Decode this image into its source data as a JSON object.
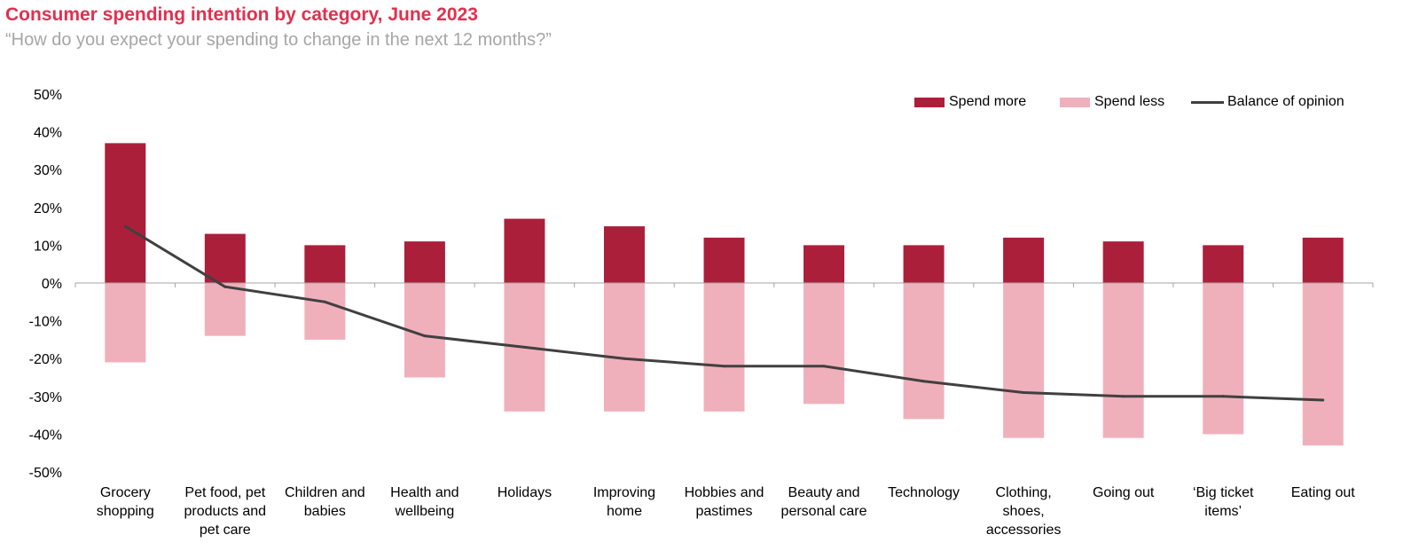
{
  "chart_data": {
    "type": "bar",
    "title": "Consumer spending intention by category, June 2023",
    "subtitle": "“How do you expect your spending to change in the next 12 months?”",
    "categories": [
      "Grocery\nshopping",
      "Pet food, pet\nproducts and\npet care",
      "Children and\nbabies",
      "Health and\nwellbeing",
      "Holidays",
      "Improving\nhome",
      "Hobbies and\npastimes",
      "Beauty and\npersonal care",
      "Technology",
      "Clothing,\nshoes,\naccessories",
      "Going out",
      "‘Big ticket\nitems’",
      "Eating out"
    ],
    "series": [
      {
        "name": "Spend more",
        "type": "bar",
        "color": "#ab1f3a",
        "values": [
          37,
          13,
          10,
          11,
          17,
          15,
          12,
          10,
          10,
          12,
          11,
          10,
          12
        ]
      },
      {
        "name": "Spend less",
        "type": "bar",
        "color": "#f0b0bb",
        "values": [
          -21,
          -14,
          -15,
          -25,
          -34,
          -34,
          -34,
          -32,
          -36,
          -41,
          -41,
          -40,
          -43
        ]
      },
      {
        "name": "Balance of opinion",
        "type": "line",
        "color": "#404040",
        "values": [
          15,
          -1,
          -5,
          -14,
          -17,
          -20,
          -22,
          -22,
          -26,
          -29,
          -30,
          -30,
          -31
        ]
      }
    ],
    "ylim": [
      -50,
      50
    ],
    "yticks": [
      "-50%",
      "-40%",
      "-30%",
      "-20%",
      "-10%",
      "0%",
      "10%",
      "20%",
      "30%",
      "40%",
      "50%"
    ],
    "grid": false,
    "legend": "top-right"
  }
}
